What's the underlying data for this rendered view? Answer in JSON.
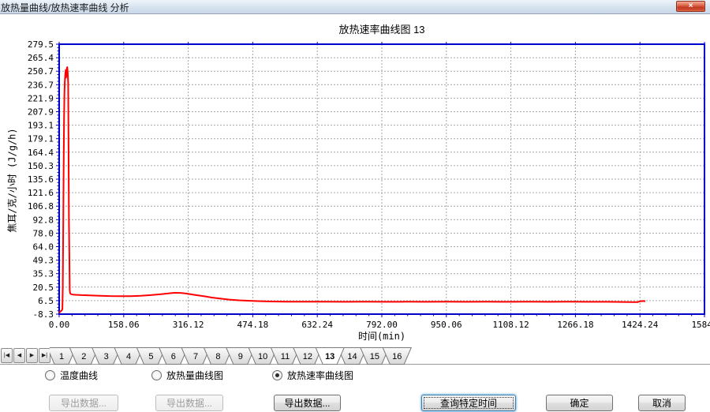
{
  "window": {
    "title": "放热量曲线/放热速率曲线 分析",
    "close_glyph": "×"
  },
  "chart_data": {
    "type": "line",
    "title": "放热速率曲线图 13",
    "xlabel": "时间(min)",
    "ylabel": "焦耳/克/小时 (J/g/h)",
    "xlim": [
      0,
      1584.3
    ],
    "ylim": [
      -8.3,
      279.5
    ],
    "grid": true,
    "legend": "none",
    "axis_color": "#0000cd",
    "grid_color": "#a6a6a6",
    "x_tick_labels": [
      "0.00",
      "158.06",
      "316.12",
      "474.18",
      "632.24",
      "792.00",
      "950.06",
      "1108.12",
      "1266.18",
      "1424.24",
      "1584."
    ],
    "y_tick_labels": [
      "279.5",
      "265.4",
      "250.7",
      "236.7",
      "221.9",
      "207.9",
      "193.1",
      "179.1",
      "164.4",
      "150.3",
      "135.6",
      "121.6",
      "106.8",
      "92.8",
      "78.0",
      "64.0",
      "49.3",
      "35.3",
      "20.5",
      "6.5",
      "-8.3"
    ],
    "series": [
      {
        "name": "放热速率",
        "color": "#ff0000",
        "points": [
          [
            0,
            -7
          ],
          [
            3,
            -5.5
          ],
          [
            6,
            -4.5
          ],
          [
            8,
            -3
          ],
          [
            9,
            20
          ],
          [
            10,
            90
          ],
          [
            11,
            150
          ],
          [
            12,
            200
          ],
          [
            13,
            228
          ],
          [
            14,
            240
          ],
          [
            15,
            247
          ],
          [
            16,
            252
          ],
          [
            17,
            244
          ],
          [
            18,
            248
          ],
          [
            19,
            254
          ],
          [
            20,
            255
          ],
          [
            21,
            250
          ],
          [
            22,
            238
          ],
          [
            23,
            170
          ],
          [
            24,
            90
          ],
          [
            25,
            55
          ],
          [
            25.5,
            32
          ],
          [
            26,
            17
          ],
          [
            27,
            14
          ],
          [
            29,
            13
          ],
          [
            33,
            12.6
          ],
          [
            40,
            12.3
          ],
          [
            55,
            12
          ],
          [
            75,
            11.7
          ],
          [
            100,
            11.3
          ],
          [
            125,
            11
          ],
          [
            150,
            10.9
          ],
          [
            175,
            10.9
          ],
          [
            200,
            11.3
          ],
          [
            225,
            12
          ],
          [
            250,
            13
          ],
          [
            268,
            13.8
          ],
          [
            283,
            14.4
          ],
          [
            298,
            14.3
          ],
          [
            312,
            13.7
          ],
          [
            328,
            12.6
          ],
          [
            343,
            11.6
          ],
          [
            358,
            10.6
          ],
          [
            375,
            9.4
          ],
          [
            395,
            8.3
          ],
          [
            418,
            7.2
          ],
          [
            442,
            6.4
          ],
          [
            468,
            5.9
          ],
          [
            495,
            5.5
          ],
          [
            525,
            5.2
          ],
          [
            560,
            5
          ],
          [
            600,
            4.9
          ],
          [
            650,
            4.9
          ],
          [
            700,
            4.8
          ],
          [
            750,
            4.9
          ],
          [
            800,
            4.8
          ],
          [
            850,
            4.9
          ],
          [
            900,
            4.8
          ],
          [
            950,
            4.9
          ],
          [
            1000,
            4.8
          ],
          [
            1050,
            4.9
          ],
          [
            1100,
            4.8
          ],
          [
            1150,
            4.9
          ],
          [
            1200,
            4.8
          ],
          [
            1250,
            4.9
          ],
          [
            1300,
            4.8
          ],
          [
            1345,
            4.8
          ],
          [
            1385,
            4.7
          ],
          [
            1408,
            4.6
          ],
          [
            1420,
            4.5
          ],
          [
            1426,
            5.4
          ],
          [
            1433,
            5.7
          ],
          [
            1439,
            5.5
          ]
        ]
      }
    ]
  },
  "tab_strip": {
    "nav_buttons": [
      {
        "name": "first",
        "glyph": "|◀"
      },
      {
        "name": "prev",
        "glyph": "◀"
      },
      {
        "name": "next",
        "glyph": "▶"
      },
      {
        "name": "last",
        "glyph": "▶|"
      }
    ],
    "tabs": [
      "1",
      "2",
      "3",
      "4",
      "5",
      "6",
      "7",
      "8",
      "9",
      "10",
      "11",
      "12",
      "13",
      "14",
      "15",
      "16"
    ],
    "selected": "13"
  },
  "radios": [
    {
      "label": "温度曲线",
      "selected": false
    },
    {
      "label": "放热量曲线图",
      "selected": false
    },
    {
      "label": "放热速率曲线图",
      "selected": true
    }
  ],
  "buttons": {
    "export1": "导出数据...",
    "export2": "导出数据...",
    "export3": "导出数据...",
    "query": "查询特定时间",
    "ok": "确定",
    "cancel": "取消"
  }
}
